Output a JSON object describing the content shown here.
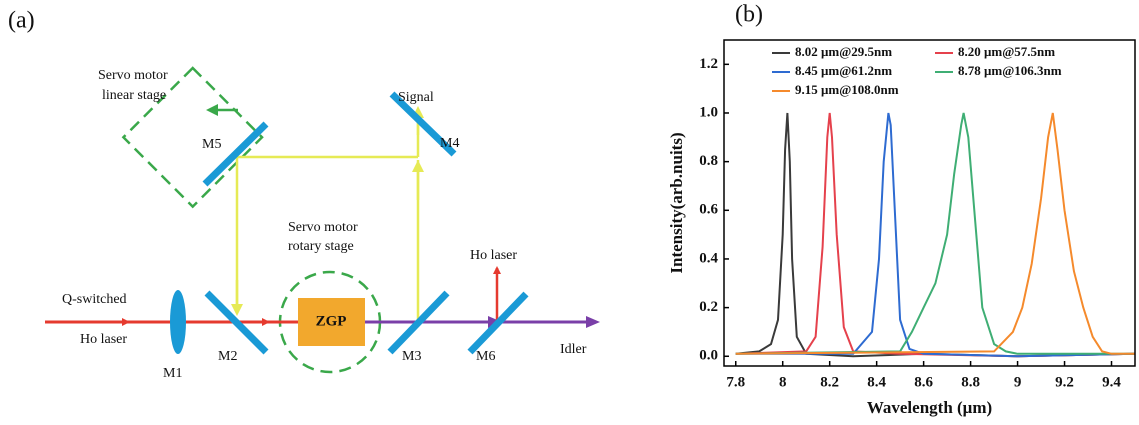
{
  "figure": {
    "panel_a": "(a)",
    "panel_b": "(b)"
  },
  "diagram": {
    "servo_linear": [
      "Servo motor",
      "linear stage"
    ],
    "signal": "Signal",
    "m5": "M5",
    "m4": "M4",
    "servo_rotary": [
      "Servo motor",
      "rotary stage"
    ],
    "ho_laser_out": "Ho laser",
    "q_switched": "Q-switched",
    "ho_laser_in": "Ho  laser",
    "m1": "M1",
    "m2": "M2",
    "zgp": "ZGP",
    "m3": "M3",
    "m6": "M6",
    "idler": "Idler"
  },
  "chart_data": {
    "type": "line",
    "x_label": "Wavelength (μm)",
    "y_label": "Intensity(arb.nuits)",
    "xlim": [
      7.75,
      9.5
    ],
    "xticks": [
      7.8,
      8.0,
      8.2,
      8.4,
      8.6,
      8.8,
      9.0,
      9.2,
      9.4
    ],
    "ylim": [
      -0.04,
      1.3
    ],
    "yticks": [
      {
        "value": 0,
        "label": "0.0"
      },
      0.2,
      0.4,
      0.6,
      0.8,
      {
        "value": 1,
        "label": "1.0"
      },
      1.2
    ],
    "series": [
      {
        "name": "8.02 μm@29.5nm",
        "color": "#3a3a3a",
        "x": [
          7.8,
          7.9,
          7.95,
          7.98,
          8.0,
          8.01,
          8.02,
          8.03,
          8.04,
          8.06,
          8.1,
          8.3,
          8.6,
          9.0,
          9.5
        ],
        "values": [
          0.01,
          0.02,
          0.05,
          0.15,
          0.5,
          0.85,
          1.0,
          0.8,
          0.4,
          0.08,
          0.01,
          0.0,
          0.01,
          0.0,
          0.01
        ]
      },
      {
        "name": "8.20 μm@57.5nm",
        "color": "#e5414c",
        "x": [
          7.8,
          8.1,
          8.14,
          8.17,
          8.19,
          8.2,
          8.21,
          8.23,
          8.26,
          8.3,
          8.5,
          9.0,
          9.5
        ],
        "values": [
          0.01,
          0.02,
          0.08,
          0.45,
          0.9,
          1.0,
          0.9,
          0.5,
          0.12,
          0.02,
          0.01,
          0.0,
          0.01
        ]
      },
      {
        "name": "8.45 μm@61.2nm",
        "color": "#2e6bd1",
        "x": [
          7.8,
          8.3,
          8.38,
          8.41,
          8.43,
          8.45,
          8.46,
          8.48,
          8.5,
          8.54,
          8.6,
          9.0,
          9.5
        ],
        "values": [
          0.01,
          0.01,
          0.1,
          0.4,
          0.8,
          1.0,
          0.95,
          0.55,
          0.15,
          0.03,
          0.01,
          0.0,
          0.01
        ]
      },
      {
        "name": "8.78 μm@106.3nm",
        "color": "#3fae74",
        "x": [
          7.8,
          8.5,
          8.55,
          8.6,
          8.65,
          8.7,
          8.73,
          8.76,
          8.77,
          8.79,
          8.82,
          8.85,
          8.9,
          8.95,
          9.0,
          9.5
        ],
        "values": [
          0.01,
          0.02,
          0.1,
          0.2,
          0.3,
          0.5,
          0.75,
          0.95,
          1.0,
          0.9,
          0.55,
          0.2,
          0.05,
          0.02,
          0.01,
          0.01
        ]
      },
      {
        "name": "9.15 μm@108.0nm",
        "color": "#f58a2c",
        "x": [
          7.8,
          8.9,
          8.98,
          9.02,
          9.06,
          9.1,
          9.13,
          9.15,
          9.17,
          9.2,
          9.24,
          9.28,
          9.32,
          9.36,
          9.4,
          9.5
        ],
        "values": [
          0.01,
          0.02,
          0.1,
          0.2,
          0.38,
          0.65,
          0.9,
          1.0,
          0.85,
          0.6,
          0.35,
          0.2,
          0.08,
          0.02,
          0.01,
          0.01
        ]
      }
    ]
  }
}
